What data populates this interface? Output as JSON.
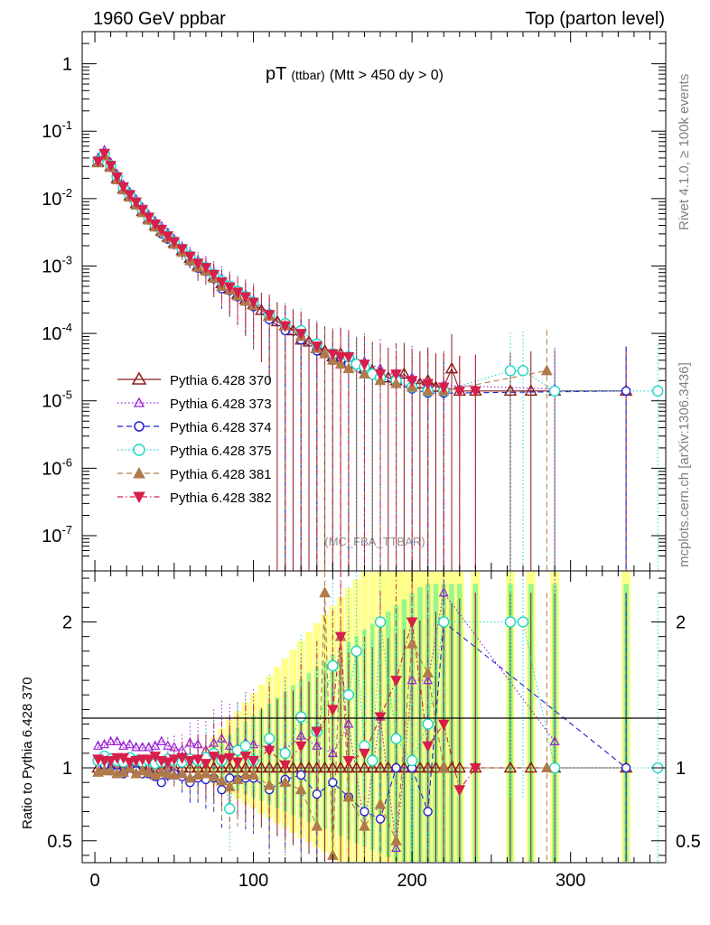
{
  "header": {
    "left": "1960 GeV ppbar",
    "right": "Top (parton level)"
  },
  "side": {
    "rivet": "Rivet 4.1.0, ≥ 100k events",
    "mcplots": "mcplots.cern.ch [arXiv:1306.3436]"
  },
  "chart_data": {
    "type": "line",
    "title": "pT",
    "title_suffix": "(ttbar)",
    "title_cut": "(Mtt > 450 dy > 0)",
    "analysis": "(MC_FBA_TTBAR)",
    "xlabel": "",
    "ylabel_ratio": "Ratio to Pythia 6.428 370",
    "xlim": [
      -8,
      360
    ],
    "ylim": [
      3e-08,
      3
    ],
    "yscale": "log",
    "ratio_ylim": [
      0.35,
      2.35
    ],
    "x_ticks": [
      "0",
      "100",
      "200",
      "300"
    ],
    "y_ticks": [
      "1",
      "10^-1",
      "10^-2",
      "10^-3",
      "10^-4",
      "10^-5",
      "10^-6",
      "10^-7"
    ],
    "ratio_ticks": [
      "0.5",
      "1",
      "2"
    ],
    "reference": "Pythia 6.428 370",
    "legend": [
      {
        "name": "Pythia 6.428 370",
        "color": "#8b1a1a",
        "marker": "triangle-up-open",
        "dash": "solid"
      },
      {
        "name": "Pythia 6.428 373",
        "color": "#9a1fd6",
        "marker": "triangle-up-open-small",
        "dash": "dotted"
      },
      {
        "name": "Pythia 6.428 374",
        "color": "#1f1fd6",
        "marker": "circle-open",
        "dash": "dashed"
      },
      {
        "name": "Pythia 6.428 375",
        "color": "#1fd6c8",
        "marker": "circle-open-large",
        "dash": "dotted"
      },
      {
        "name": "Pythia 6.428 381",
        "color": "#b07a4a",
        "marker": "triangle-up-filled",
        "dash": "dashed"
      },
      {
        "name": "Pythia 6.428 382",
        "color": "#d61f4a",
        "marker": "triangle-down-filled",
        "dash": "dashdot"
      }
    ],
    "series": [
      {
        "name": "Pythia 6.428 370",
        "x": [
          2,
          6,
          10,
          14,
          18,
          22,
          26,
          30,
          34,
          38,
          42,
          46,
          50,
          55,
          60,
          65,
          70,
          75,
          80,
          85,
          90,
          95,
          100,
          105,
          110,
          115,
          120,
          125,
          130,
          135,
          140,
          145,
          150,
          155,
          160,
          165,
          170,
          175,
          180,
          185,
          190,
          195,
          200,
          205,
          210,
          215,
          220,
          225,
          230,
          240,
          262,
          275,
          290,
          335
        ],
        "y": [
          0.035,
          0.045,
          0.03,
          0.02,
          0.014,
          0.011,
          0.0085,
          0.0065,
          0.005,
          0.004,
          0.0033,
          0.0027,
          0.0022,
          0.0017,
          0.0013,
          0.001,
          0.0009,
          0.0007,
          0.00055,
          0.00046,
          0.00038,
          0.00032,
          0.00027,
          0.00022,
          0.00018,
          0.00015,
          0.00013,
          0.00011,
          8e-05,
          7.5e-05,
          6e-05,
          5.5e-05,
          4.5e-05,
          5e-05,
          4e-05,
          3.5e-05,
          3e-05,
          2.8e-05,
          2.6e-05,
          2.2e-05,
          2e-05,
          2.5e-05,
          1.8e-05,
          1.8e-05,
          2e-05,
          1.6e-05,
          1.6e-05,
          3e-05,
          1.4e-05,
          1.4e-05,
          1.4e-05,
          1.4e-05,
          1.4e-05,
          1.4e-05
        ],
        "ratio": [
          1,
          1,
          1,
          1,
          1,
          1,
          1,
          1,
          1,
          1,
          1,
          1,
          1,
          1,
          1,
          1,
          1,
          1,
          1,
          1,
          1,
          1,
          1,
          1,
          1,
          1,
          1,
          1,
          1,
          1,
          1,
          1,
          1,
          1,
          1,
          1,
          1,
          1,
          1,
          1,
          1,
          1,
          1,
          1,
          1,
          1,
          1,
          1,
          1,
          1,
          1,
          1,
          1,
          1
        ]
      },
      {
        "name": "Pythia 6.428 373",
        "x": [
          2,
          6,
          10,
          14,
          18,
          22,
          26,
          30,
          34,
          38,
          42,
          46,
          50,
          55,
          60,
          65,
          70,
          75,
          80,
          85,
          90,
          95,
          100,
          110,
          120,
          130,
          140,
          150,
          160,
          170,
          180,
          190,
          200,
          210,
          220,
          290
        ],
        "y": [
          0.04,
          0.052,
          0.034,
          0.023,
          0.016,
          0.0125,
          0.0097,
          0.0074,
          0.0057,
          0.0046,
          0.0039,
          0.0031,
          0.0025,
          0.0019,
          0.0015,
          0.0012,
          0.001,
          0.0008,
          0.00065,
          0.00052,
          0.00043,
          0.00037,
          0.00031,
          0.0002,
          0.00014,
          9e-05,
          6.5e-05,
          4.5e-05,
          4.5e-05,
          3.8e-05,
          3e-05,
          2.5e-05,
          2.2e-05,
          1.8e-05,
          1.7e-05,
          1.5e-05
        ],
        "ratio": [
          1.15,
          1.16,
          1.18,
          1.18,
          1.15,
          1.16,
          1.14,
          1.14,
          1.14,
          1.15,
          1.18,
          1.15,
          1.14,
          1.12,
          1.17,
          1.16,
          1.12,
          1.17,
          1.2,
          1.15,
          1.13,
          1.17,
          1.16,
          1.14,
          1.12,
          1.22,
          1.15,
          1.1,
          1.3,
          0.6,
          1.35,
          0.45,
          1.6,
          1.6,
          2.2,
          1.18
        ]
      },
      {
        "name": "Pythia 6.428 374",
        "x": [
          2,
          6,
          10,
          14,
          18,
          22,
          26,
          30,
          34,
          38,
          42,
          46,
          50,
          55,
          60,
          65,
          70,
          75,
          80,
          85,
          90,
          95,
          100,
          110,
          120,
          130,
          140,
          150,
          160,
          170,
          180,
          190,
          200,
          210,
          220,
          335
        ],
        "y": [
          0.035,
          0.044,
          0.029,
          0.019,
          0.0135,
          0.0105,
          0.0082,
          0.0063,
          0.0048,
          0.0038,
          0.003,
          0.0025,
          0.0021,
          0.0016,
          0.00118,
          0.00093,
          0.00083,
          0.00065,
          0.00046,
          0.00043,
          0.00035,
          0.0003,
          0.00025,
          0.00016,
          0.00011,
          8e-05,
          5.5e-05,
          4e-05,
          3.5e-05,
          2.8e-05,
          2.2e-05,
          1.8e-05,
          1.5e-05,
          1.3e-05,
          1.3e-05,
          1.4e-05
        ],
        "ratio": [
          1.05,
          1.02,
          0.98,
          0.97,
          0.96,
          1.0,
          0.98,
          0.96,
          0.96,
          0.94,
          0.9,
          0.95,
          0.96,
          0.94,
          0.9,
          0.93,
          0.92,
          0.93,
          0.85,
          0.93,
          0.92,
          0.93,
          0.93,
          0.85,
          0.92,
          0.95,
          0.82,
          0.9,
          0.8,
          0.7,
          0.65,
          1.0,
          1.0,
          0.7,
          2.0,
          1.0
        ]
      },
      {
        "name": "Pythia 6.428 375",
        "x": [
          2,
          6,
          10,
          14,
          18,
          22,
          26,
          30,
          34,
          38,
          42,
          46,
          50,
          55,
          60,
          65,
          70,
          75,
          80,
          85,
          90,
          95,
          100,
          110,
          120,
          130,
          140,
          150,
          160,
          165,
          170,
          175,
          180,
          190,
          200,
          210,
          220,
          262,
          270,
          290,
          355
        ],
        "y": [
          0.036,
          0.046,
          0.031,
          0.021,
          0.0145,
          0.0115,
          0.0088,
          0.0068,
          0.0052,
          0.0041,
          0.0034,
          0.0028,
          0.0023,
          0.0018,
          0.0014,
          0.0011,
          0.00095,
          0.00075,
          0.0006,
          0.0005,
          0.00042,
          0.00035,
          0.00029,
          0.00019,
          0.00014,
          0.00011,
          7e-05,
          5e-05,
          4.5e-05,
          3.5e-05,
          3.2e-05,
          2.5e-05,
          2.2e-05,
          2e-05,
          1.6e-05,
          1.4e-05,
          1.4e-05,
          2.8e-05,
          2.8e-05,
          1.4e-05,
          1.4e-05
        ],
        "ratio": [
          1.05,
          1.08,
          1.06,
          1.05,
          1.04,
          1.07,
          1.05,
          1.04,
          1.05,
          1.03,
          1.04,
          1.06,
          1.05,
          1.04,
          1.06,
          1.05,
          1.07,
          1.1,
          1.05,
          0.72,
          1.12,
          1.15,
          1.05,
          1.2,
          1.1,
          1.35,
          1.25,
          1.7,
          1.5,
          1.8,
          1.15,
          1.05,
          2.0,
          1.2,
          1.05,
          1.3,
          2.0,
          2.0,
          2.0,
          1.0,
          1.0
        ]
      },
      {
        "name": "Pythia 6.428 381",
        "x": [
          2,
          6,
          10,
          14,
          18,
          22,
          26,
          30,
          34,
          38,
          42,
          46,
          50,
          55,
          60,
          65,
          70,
          75,
          80,
          85,
          90,
          95,
          100,
          110,
          120,
          130,
          140,
          145,
          150,
          155,
          160,
          170,
          180,
          190,
          200,
          210,
          220,
          285
        ],
        "y": [
          0.034,
          0.043,
          0.029,
          0.019,
          0.0135,
          0.0105,
          0.008,
          0.0062,
          0.0048,
          0.0038,
          0.0032,
          0.0026,
          0.0021,
          0.0016,
          0.0012,
          0.00096,
          0.00084,
          0.00066,
          0.0005,
          0.00044,
          0.00036,
          0.0003,
          0.00026,
          0.00018,
          0.00013,
          9e-05,
          6e-05,
          5e-05,
          4e-05,
          3.5e-05,
          3e-05,
          2.5e-05,
          2e-05,
          1.8e-05,
          1.6e-05,
          1.4e-05,
          1.4e-05,
          2.8e-05
        ],
        "ratio": [
          0.97,
          0.98,
          0.98,
          0.96,
          0.97,
          1.0,
          0.96,
          0.98,
          0.97,
          0.95,
          0.97,
          0.96,
          0.95,
          0.96,
          0.93,
          0.95,
          0.96,
          0.94,
          0.91,
          0.87,
          0.92,
          0.95,
          0.95,
          0.88,
          0.9,
          0.85,
          0.6,
          2.2,
          0.4,
          1.9,
          0.8,
          0.6,
          0.75,
          0.5,
          1.85,
          1.65,
          1.0,
          1.0
        ]
      },
      {
        "name": "Pythia 6.428 382",
        "x": [
          2,
          6,
          10,
          14,
          18,
          22,
          26,
          30,
          34,
          38,
          42,
          46,
          50,
          55,
          60,
          65,
          70,
          75,
          80,
          85,
          90,
          95,
          100,
          110,
          120,
          130,
          140,
          150,
          155,
          160,
          170,
          180,
          190,
          200,
          210,
          220,
          230,
          240
        ],
        "y": [
          0.036,
          0.047,
          0.031,
          0.021,
          0.015,
          0.0115,
          0.0089,
          0.0069,
          0.0053,
          0.0042,
          0.0035,
          0.0028,
          0.0023,
          0.0018,
          0.0014,
          0.0011,
          0.00095,
          0.00075,
          0.00058,
          0.00049,
          0.00041,
          0.00035,
          0.00029,
          0.00019,
          0.00013,
          0.0001,
          6.5e-05,
          5e-05,
          4.5e-05,
          4.5e-05,
          3.5e-05,
          2.5e-05,
          2.5e-05,
          2e-05,
          1.8e-05,
          1.6e-05,
          1.4e-05,
          1.4e-05
        ],
        "ratio": [
          1.06,
          1.05,
          1.05,
          1.07,
          1.07,
          1.04,
          1.05,
          1.06,
          1.06,
          1.08,
          1.05,
          1.04,
          1.06,
          1.07,
          1.05,
          1.06,
          1.03,
          1.08,
          1.06,
          1.07,
          1.04,
          1.08,
          1.05,
          1.12,
          1.02,
          1.15,
          1.25,
          1.4,
          1.9,
          1.05,
          1.1,
          1.35,
          1.6,
          2.0,
          1.15,
          1.3,
          0.85,
          1.0
        ]
      }
    ]
  }
}
